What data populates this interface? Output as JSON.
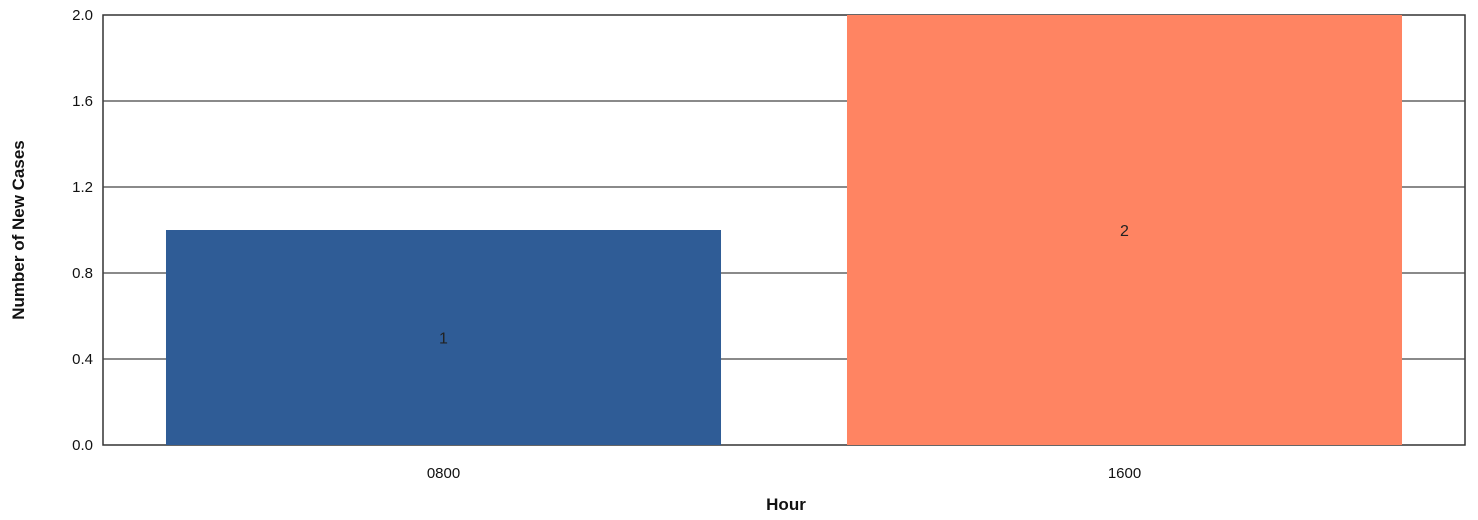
{
  "chart_data": {
    "type": "bar",
    "categories": [
      "0800",
      "1600"
    ],
    "values": [
      1,
      2
    ],
    "data_labels": [
      "1",
      "2"
    ],
    "colors": [
      "#2f5c96",
      "#ff8462"
    ],
    "title": "",
    "xlabel": "Hour",
    "ylabel": "Number of New Cases",
    "ylim": [
      0,
      2.0
    ],
    "yticks": [
      "0.0",
      "0.4",
      "0.8",
      "1.2",
      "1.6",
      "2.0"
    ],
    "ytick_values": [
      0,
      0.4,
      0.8,
      1.2,
      1.6,
      2.0
    ],
    "grid": true,
    "legend": "none"
  }
}
